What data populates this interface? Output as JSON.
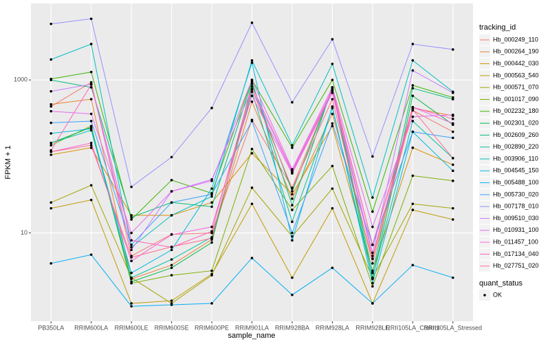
{
  "chart_data": {
    "type": "line",
    "x_label": "sample_name",
    "y_label": "FPKM + 1",
    "log_y": true,
    "grid": true,
    "ylim": [
      0.7,
      10000
    ],
    "yticks": [
      10,
      1000
    ],
    "categories": [
      "PB350LA",
      "RRIM600LA",
      "RRIM600LE",
      "RRIM600SE",
      "RRIM600PE",
      "RRIM901LA",
      "RRIM928BA",
      "RRIM928LA",
      "RRIM928LE",
      "RRII105LA_Control",
      "RRII105LA_Stressed"
    ],
    "legend_title": "tracking_id",
    "legend2_title": "quant_status",
    "legend2_label": "OK",
    "point_color": "#000000",
    "series": [
      {
        "name": "Hb_000249_110",
        "color": "#F8766D",
        "values": [
          450,
          930,
          5.0,
          9.6,
          10,
          300,
          39,
          780,
          7,
          400,
          210
        ]
      },
      {
        "name": "Hb_000264_190",
        "color": "#EA8331",
        "values": [
          480,
          560,
          2.5,
          3.8,
          8.2,
          520,
          28,
          360,
          4.6,
          430,
          340
        ]
      },
      {
        "name": "Hb_000442_030",
        "color": "#D89000",
        "values": [
          105,
          130,
          17,
          17,
          25,
          110,
          32,
          250,
          3.2,
          130,
          78
        ]
      },
      {
        "name": "Hb_000563_540",
        "color": "#C09B00",
        "values": [
          21,
          27,
          1.2,
          1.3,
          2.9,
          24,
          2.6,
          21,
          1.2,
          20,
          15
        ]
      },
      {
        "name": "Hb_000571_070",
        "color": "#A3A500",
        "values": [
          25,
          42,
          2.6,
          1.2,
          2.8,
          39,
          9,
          38,
          2.6,
          24,
          21
        ]
      },
      {
        "name": "Hb_001017_090",
        "color": "#7CAE00",
        "values": [
          140,
          250,
          2.2,
          2.8,
          3.2,
          125,
          20,
          75,
          2.0,
          56,
          48
        ]
      },
      {
        "name": "Hb_002232_180",
        "color": "#39B600",
        "values": [
          1030,
          1270,
          15,
          49,
          33,
          1000,
          130,
          1000,
          19,
          850,
          590
        ]
      },
      {
        "name": "Hb_002301_020",
        "color": "#00BB4E",
        "values": [
          150,
          240,
          2.3,
          3.5,
          7.5,
          890,
          35,
          750,
          2.5,
          620,
          260
        ]
      },
      {
        "name": "Hb_002609_260",
        "color": "#00BF7D",
        "values": [
          1000,
          800,
          16,
          25,
          22,
          950,
          23,
          800,
          3,
          780,
          560
        ]
      },
      {
        "name": "Hb_002890_220",
        "color": "#00C1A3",
        "values": [
          150,
          220,
          2.6,
          4.5,
          8.8,
          700,
          14,
          430,
          2.6,
          290,
          95
        ]
      },
      {
        "name": "Hb_003906_110",
        "color": "#00BFC4",
        "values": [
          1850,
          2950,
          6.5,
          17,
          30,
          1800,
          140,
          1620,
          29,
          1800,
          700
        ]
      },
      {
        "name": "Hb_004545_150",
        "color": "#00BAE0",
        "values": [
          200,
          230,
          3.0,
          6,
          38,
          1680,
          8,
          450,
          2.2,
          210,
          65
        ]
      },
      {
        "name": "Hb_005488_100",
        "color": "#00B0F6",
        "values": [
          4,
          5.2,
          1.1,
          1.15,
          1.2,
          4.7,
          1.55,
          3.5,
          1.2,
          3.8,
          2.6
        ]
      },
      {
        "name": "Hb_005730_020",
        "color": "#35A2FF",
        "values": [
          275,
          290,
          7,
          25,
          32,
          290,
          10,
          270,
          7,
          210,
          175
        ]
      },
      {
        "name": "Hb_007178_010",
        "color": "#9590FF",
        "values": [
          5400,
          6300,
          40,
          98,
          430,
          5600,
          510,
          3400,
          100,
          2950,
          2500
        ]
      },
      {
        "name": "Hb_009510_030",
        "color": "#C77CFF",
        "values": [
          710,
          880,
          6,
          35,
          50,
          750,
          62,
          720,
          5.5,
          1330,
          680
        ]
      },
      {
        "name": "Hb_010931_100",
        "color": "#E76BF3",
        "values": [
          390,
          360,
          10,
          35,
          48,
          1000,
          68,
          800,
          12,
          330,
          350
        ]
      },
      {
        "name": "Hb_011457_100",
        "color": "#FA62DB",
        "values": [
          115,
          150,
          4.3,
          9.5,
          12,
          620,
          60,
          680,
          5,
          440,
          270
        ]
      },
      {
        "name": "Hb_017134_040",
        "color": "#FF62BC",
        "values": [
          120,
          870,
          8,
          6.5,
          10.5,
          820,
          65,
          740,
          7,
          440,
          310
        ]
      },
      {
        "name": "Hb_027751_020",
        "color": "#FF6C91",
        "values": [
          115,
          140,
          4.8,
          6.6,
          8.5,
          760,
          38,
          560,
          4.0,
          410,
          95
        ]
      }
    ]
  }
}
